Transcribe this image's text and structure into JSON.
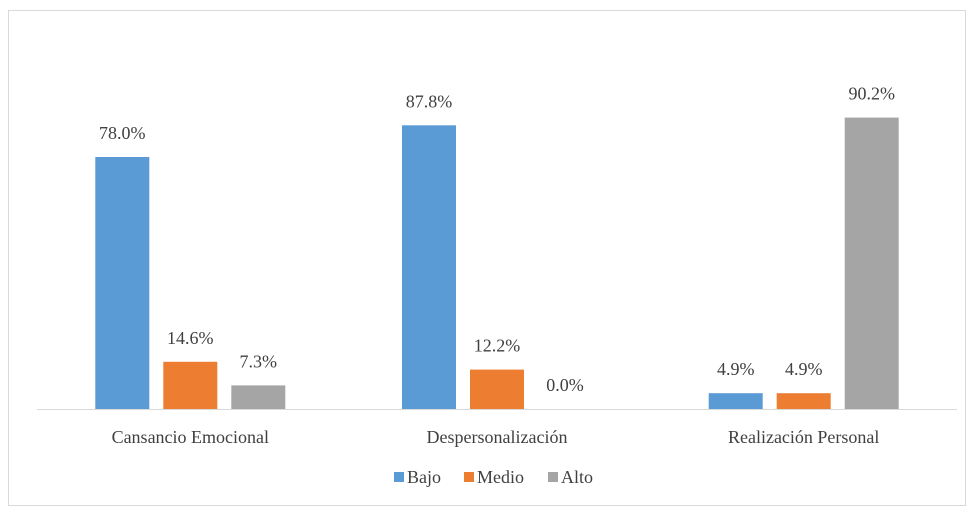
{
  "chart_data": {
    "type": "bar",
    "title": "",
    "xlabel": "",
    "ylabel": "",
    "ylim": [
      0,
      100
    ],
    "grid": false,
    "legend_position": "bottom",
    "categories": [
      "Cansancio Emocional",
      "Despersonalización",
      "Realización Personal"
    ],
    "series": [
      {
        "name": "Bajo",
        "color": "#5b9bd5",
        "values": [
          78.0,
          87.8,
          4.9
        ],
        "labels": [
          "78.0%",
          "87.8%",
          "4.9%"
        ]
      },
      {
        "name": "Medio",
        "color": "#ed7d31",
        "values": [
          14.6,
          12.2,
          4.9
        ],
        "labels": [
          "14.6%",
          "12.2%",
          "4.9%"
        ]
      },
      {
        "name": "Alto",
        "color": "#a5a5a5",
        "values": [
          7.3,
          0.0,
          90.2
        ],
        "labels": [
          "7.3%",
          "0.0%",
          "90.2%"
        ]
      }
    ]
  }
}
